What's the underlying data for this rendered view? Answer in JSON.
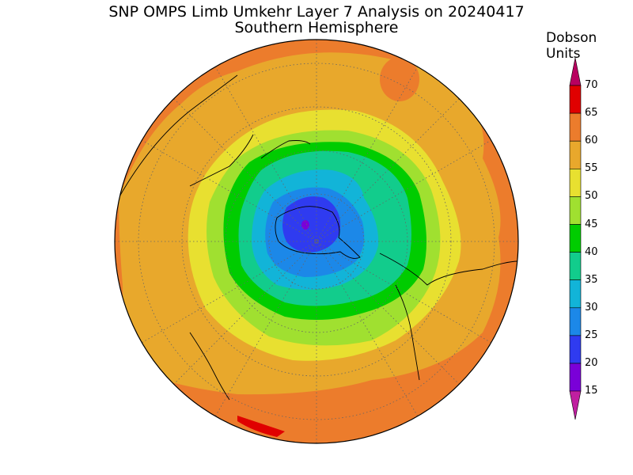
{
  "title_line1": "SNP OMPS Limb Umkehr Layer 7 Analysis on 20240417",
  "title_line2": "Southern Hemisphere",
  "colorbar": {
    "title_line1": "Dobson",
    "title_line2": "Units",
    "levels": [
      "70",
      "65",
      "60",
      "55",
      "50",
      "45",
      "40",
      "35",
      "30",
      "25",
      "20",
      "15"
    ],
    "colors": {
      "below15": "#c01fa0",
      "15-20": "#7a00d8",
      "20-25": "#2f3bf0",
      "25-30": "#1c88e8",
      "30-35": "#12b4d8",
      "35-40": "#12cc8c",
      "40-45": "#00cc00",
      "45-50": "#a0e030",
      "50-55": "#e8e030",
      "55-60": "#e8a82c",
      "60-65": "#ec7c2c",
      "65-70": "#e00000",
      "above70": "#b80060"
    }
  },
  "map": {
    "projection": "polar-stereographic-south",
    "graticule": "dotted"
  }
}
